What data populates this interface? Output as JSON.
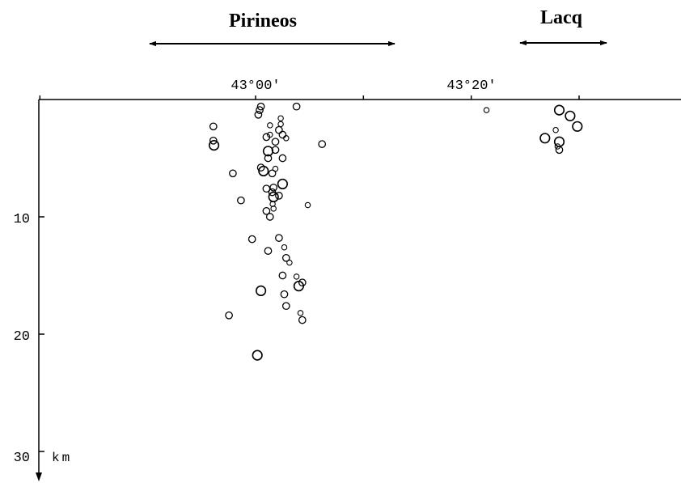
{
  "chart_data": {
    "type": "scatter",
    "title": "",
    "regions": [
      {
        "name": "Pirineos",
        "range": [
          "42°46.5'",
          "43°20'"
        ]
      },
      {
        "name": "Lacq",
        "range": [
          "43°29'",
          "43°36.5'"
        ]
      }
    ],
    "x_ticks": [
      "43°00'",
      "43°20'"
    ],
    "x_ticks_unlabeled": [
      "42°40'",
      "43°10'",
      "43°30'"
    ],
    "xlim": [
      "42°33'",
      "43°45'"
    ],
    "y_ticks": [
      "10",
      "20",
      "30"
    ],
    "ylim": [
      0,
      32
    ],
    "y_unit": "km",
    "y_inverted": true,
    "points": [
      {
        "x": 42.9347,
        "y": 2.3,
        "size": "small"
      },
      {
        "x": 42.9347,
        "y": 3.5,
        "size": "small"
      },
      {
        "x": 42.9358,
        "y": 3.9,
        "size": "medium"
      },
      {
        "x": 42.9649,
        "y": 6.3,
        "size": "small"
      },
      {
        "x": 42.9774,
        "y": 8.6,
        "size": "small"
      },
      {
        "x": 42.9946,
        "y": 11.9,
        "size": "small"
      },
      {
        "x": 42.9589,
        "y": 18.4,
        "size": "small"
      },
      {
        "x": 43.0028,
        "y": 21.8,
        "size": "medium"
      },
      {
        "x": 43.0042,
        "y": 1.3,
        "size": "small"
      },
      {
        "x": 43.0063,
        "y": 0.9,
        "size": "small"
      },
      {
        "x": 43.0083,
        "y": 0.6,
        "size": "small"
      },
      {
        "x": 43.0167,
        "y": 3.2,
        "size": "small"
      },
      {
        "x": 43.0194,
        "y": 4.4,
        "size": "medium"
      },
      {
        "x": 43.0222,
        "y": 2.2,
        "size": "tiny"
      },
      {
        "x": 43.0222,
        "y": 3.0,
        "size": "tiny"
      },
      {
        "x": 43.0194,
        "y": 5.0,
        "size": "small"
      },
      {
        "x": 43.0083,
        "y": 5.8,
        "size": "small"
      },
      {
        "x": 43.0122,
        "y": 6.1,
        "size": "medium"
      },
      {
        "x": 43.0167,
        "y": 7.6,
        "size": "small"
      },
      {
        "x": 43.0167,
        "y": 9.5,
        "size": "small"
      },
      {
        "x": 43.0222,
        "y": 10.0,
        "size": "small"
      },
      {
        "x": 43.0194,
        "y": 12.9,
        "size": "small"
      },
      {
        "x": 43.0083,
        "y": 16.3,
        "size": "medium"
      },
      {
        "x": 43.0306,
        "y": 3.6,
        "size": "small"
      },
      {
        "x": 43.0306,
        "y": 4.3,
        "size": "small"
      },
      {
        "x": 43.0257,
        "y": 6.3,
        "size": "small"
      },
      {
        "x": 43.0257,
        "y": 7.9,
        "size": "small"
      },
      {
        "x": 43.0278,
        "y": 8.3,
        "size": "medium"
      },
      {
        "x": 43.0278,
        "y": 7.5,
        "size": "small"
      },
      {
        "x": 43.0264,
        "y": 8.9,
        "size": "tiny"
      },
      {
        "x": 43.0278,
        "y": 9.3,
        "size": "tiny"
      },
      {
        "x": 43.0306,
        "y": 5.9,
        "size": "tiny"
      },
      {
        "x": 43.0361,
        "y": 2.6,
        "size": "small"
      },
      {
        "x": 43.0389,
        "y": 2.1,
        "size": "tiny"
      },
      {
        "x": 43.0417,
        "y": 3.0,
        "size": "small"
      },
      {
        "x": 43.0389,
        "y": 1.6,
        "size": "tiny"
      },
      {
        "x": 43.0472,
        "y": 3.3,
        "size": "tiny"
      },
      {
        "x": 43.0417,
        "y": 5.0,
        "size": "small"
      },
      {
        "x": 43.0417,
        "y": 7.2,
        "size": "medium"
      },
      {
        "x": 43.0361,
        "y": 8.2,
        "size": "small"
      },
      {
        "x": 43.0361,
        "y": 11.8,
        "size": "small"
      },
      {
        "x": 43.0472,
        "y": 13.5,
        "size": "small"
      },
      {
        "x": 43.0444,
        "y": 12.6,
        "size": "tiny"
      },
      {
        "x": 43.0524,
        "y": 13.9,
        "size": "tiny"
      },
      {
        "x": 43.0417,
        "y": 15.0,
        "size": "small"
      },
      {
        "x": 43.0444,
        "y": 16.6,
        "size": "small"
      },
      {
        "x": 43.0472,
        "y": 17.6,
        "size": "small"
      },
      {
        "x": 43.0632,
        "y": 0.6,
        "size": "small"
      },
      {
        "x": 43.0632,
        "y": 15.1,
        "size": "tiny"
      },
      {
        "x": 43.0667,
        "y": 15.9,
        "size": "medium"
      },
      {
        "x": 43.0722,
        "y": 15.6,
        "size": "small"
      },
      {
        "x": 43.0694,
        "y": 18.2,
        "size": "tiny"
      },
      {
        "x": 43.0722,
        "y": 18.8,
        "size": "small"
      },
      {
        "x": 43.0806,
        "y": 9.0,
        "size": "tiny"
      },
      {
        "x": 43.1028,
        "y": 3.8,
        "size": "small"
      },
      {
        "x": 43.3569,
        "y": 0.9,
        "size": "tiny"
      },
      {
        "x": 43.4694,
        "y": 0.9,
        "size": "medium"
      },
      {
        "x": 43.4861,
        "y": 1.4,
        "size": "medium"
      },
      {
        "x": 43.4972,
        "y": 2.3,
        "size": "medium"
      },
      {
        "x": 43.4639,
        "y": 2.6,
        "size": "tiny"
      },
      {
        "x": 43.4472,
        "y": 3.3,
        "size": "medium"
      },
      {
        "x": 43.4694,
        "y": 3.6,
        "size": "medium"
      },
      {
        "x": 43.4667,
        "y": 4.0,
        "size": "tiny"
      },
      {
        "x": 43.4694,
        "y": 4.3,
        "size": "small"
      }
    ]
  }
}
